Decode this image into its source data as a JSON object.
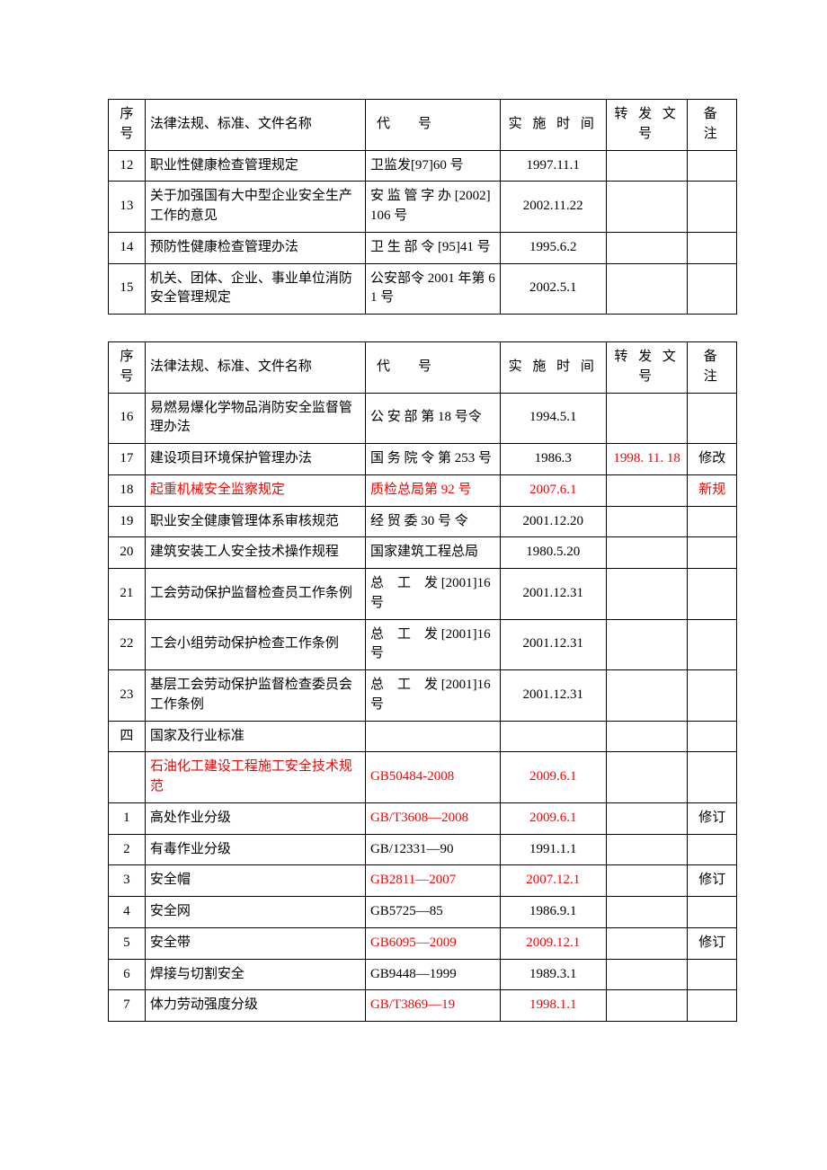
{
  "headers": {
    "seq": "序号",
    "name": "法律法规、标准、文件名称",
    "code": "代　号",
    "date": "实 施 时 间",
    "fwd": "转 发 文 号",
    "note": "备 注"
  },
  "colors": {
    "text": "#000000",
    "highlight": "#ff0000",
    "border": "#000000",
    "background": "#ffffff"
  },
  "font": {
    "family": "SimSun",
    "size_pt": 11,
    "line_height": 1.45
  },
  "table1": {
    "rows": [
      {
        "seq": "12",
        "name": "职业性健康检查管理规定",
        "code": "卫监发[97]60 号",
        "date": "1997.11.1",
        "fwd": "",
        "note": ""
      },
      {
        "seq": "13",
        "name": "关于加强国有大中型企业安全生产工作的意见",
        "code": "安 监 管 字 办 [2002]106 号",
        "code_justify": true,
        "date": "2002.11.22",
        "fwd": "",
        "note": ""
      },
      {
        "seq": "14",
        "name": "预防性健康检查管理办法",
        "code": "卫 生 部 令 [95]41 号",
        "date": "1995.6.2",
        "fwd": "",
        "note": ""
      },
      {
        "seq": "15",
        "name": "机关、团体、企业、事业单位消防安全管理规定",
        "code": "公安部令 2001 年第 61 号",
        "date": "2002.5.1",
        "fwd": "",
        "note": ""
      }
    ]
  },
  "table2": {
    "rows": [
      {
        "seq": "16",
        "name": "易燃易爆化学物品消防安全监督管理办法",
        "code": "公 安 部 第 18 号令",
        "date": "1994.5.1",
        "fwd": "",
        "note": ""
      },
      {
        "seq": "17",
        "name": "建设项目环境保护管理办法",
        "code": "国 务 院 令 第 253 号",
        "date": "1986.3",
        "fwd": "1998. 11. 18",
        "fwd_red": true,
        "note": "修改"
      },
      {
        "seq": "18",
        "name": "起重机械安全监察规定",
        "name_red": true,
        "code": "质检总局第 92 号",
        "code_red": true,
        "date": "2007.6.1",
        "date_red": true,
        "fwd": "",
        "note": "新规",
        "note_red": true
      },
      {
        "seq": "19",
        "name": "职业安全健康管理体系审核规范",
        "code": "经 贸 委 30 号 令",
        "date": "2001.12.20",
        "fwd": "",
        "note": ""
      },
      {
        "seq": "20",
        "name": "建筑安装工人安全技术操作规程",
        "code": "国家建筑工程总局",
        "date": "1980.5.20",
        "fwd": "",
        "note": ""
      },
      {
        "seq": "21",
        "name": "工会劳动保护监督检查员工作条例",
        "code": "总　工　发 [2001]16 号",
        "code_justify": true,
        "date": "2001.12.31",
        "fwd": "",
        "note": ""
      },
      {
        "seq": "22",
        "name": "工会小组劳动保护检查工作条例",
        "code": "总　工　发 [2001]16 号",
        "code_justify": true,
        "date": "2001.12.31",
        "fwd": "",
        "note": ""
      },
      {
        "seq": "23",
        "name": "基层工会劳动保护监督检查委员会工作条例",
        "code": "总　工　发 [2001]16 号",
        "code_justify": true,
        "date": "2001.12.31",
        "fwd": "",
        "note": ""
      },
      {
        "seq": "四",
        "name": "国家及行业标准",
        "code": "",
        "date": "",
        "fwd": "",
        "note": ""
      },
      {
        "seq": "",
        "name": "石油化工建设工程施工安全技术规范",
        "name_red": true,
        "code": "GB50484-2008",
        "code_red": true,
        "date": "2009.6.1",
        "date_red": true,
        "fwd": "",
        "note": ""
      },
      {
        "seq": "1",
        "name": "高处作业分级",
        "code": "GB/T3608—2008",
        "code_red": true,
        "date": "2009.6.1",
        "date_red": true,
        "fwd": "",
        "note": "修订"
      },
      {
        "seq": "2",
        "name": "有毒作业分级",
        "code": "GB/12331—90",
        "date": "1991.1.1",
        "fwd": "",
        "note": ""
      },
      {
        "seq": "3",
        "name": "安全帽",
        "code": "GB2811—2007",
        "code_red": true,
        "date": "2007.12.1",
        "date_red": true,
        "fwd": "",
        "note": "修订"
      },
      {
        "seq": "4",
        "name": "安全网",
        "code": "GB5725—85",
        "date": "1986.9.1",
        "fwd": "",
        "note": ""
      },
      {
        "seq": "5",
        "name": "安全带",
        "code": "GB6095—2009",
        "code_red": true,
        "date": "2009.12.1",
        "date_red": true,
        "fwd": "",
        "note": "修订"
      },
      {
        "seq": "6",
        "name": "焊接与切割安全",
        "code": "GB9448—1999",
        "date": "1989.3.1",
        "fwd": "",
        "note": ""
      },
      {
        "seq": "7",
        "name": "体力劳动强度分级",
        "code": "GB/T3869—19",
        "code_red": true,
        "date": "1998.1.1",
        "date_red": true,
        "fwd": "",
        "note": ""
      }
    ]
  }
}
